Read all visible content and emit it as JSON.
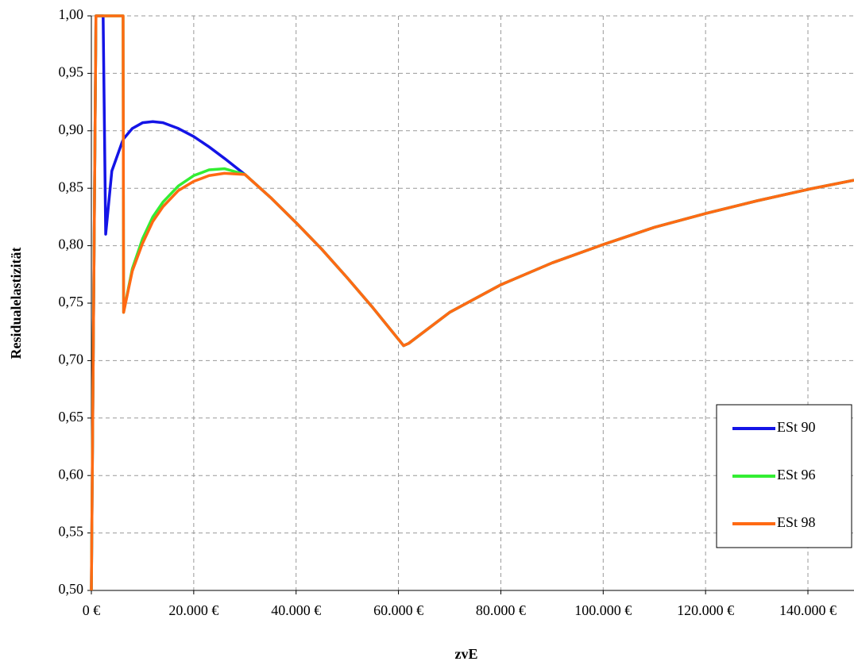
{
  "chart_data": {
    "type": "line",
    "xlabel": "zvE",
    "ylabel": "Residualelastizität",
    "x": [
      0,
      900,
      2300,
      2800,
      4000,
      6000,
      6200,
      6300,
      8000,
      10000,
      12000,
      14000,
      17000,
      20000,
      23000,
      26000,
      30000,
      35000,
      40000,
      45000,
      50000,
      55000,
      61000,
      62000,
      70000,
      80000,
      90000,
      100000,
      110000,
      120000,
      130000,
      140000,
      149000
    ],
    "series": [
      {
        "name": "ESt 90",
        "color": "#1414e6",
        "values": [
          0.5,
          1.0,
          1.0,
          0.81,
          0.865,
          0.89,
          0.892,
          0.893,
          0.902,
          0.907,
          0.908,
          0.907,
          0.902,
          0.895,
          0.886,
          0.876,
          0.862,
          0.842,
          0.82,
          0.797,
          0.772,
          0.746,
          0.713,
          0.715,
          0.742,
          0.766,
          0.785,
          0.801,
          0.816,
          0.828,
          0.839,
          0.849,
          0.857
        ]
      },
      {
        "name": "ESt 96",
        "color": "#33ee33",
        "values": [
          0.5,
          1.0,
          1.0,
          1.0,
          1.0,
          1.0,
          1.0,
          0.742,
          0.78,
          0.806,
          0.825,
          0.838,
          0.852,
          0.861,
          0.866,
          0.867,
          0.862,
          0.842,
          0.82,
          0.797,
          0.772,
          0.746,
          0.713,
          0.715,
          0.742,
          0.766,
          0.785,
          0.801,
          0.816,
          0.828,
          0.839,
          0.849,
          0.857
        ]
      },
      {
        "name": "ESt 98",
        "color": "#ff6a13",
        "values": [
          0.5,
          1.0,
          1.0,
          1.0,
          1.0,
          1.0,
          1.0,
          0.742,
          0.778,
          0.802,
          0.821,
          0.834,
          0.848,
          0.856,
          0.861,
          0.863,
          0.862,
          0.842,
          0.82,
          0.797,
          0.772,
          0.746,
          0.713,
          0.715,
          0.742,
          0.766,
          0.785,
          0.801,
          0.816,
          0.828,
          0.839,
          0.849,
          0.857
        ]
      }
    ],
    "xlim": [
      0,
      149000
    ],
    "xticks": [
      {
        "value": 0,
        "label": "0 €"
      },
      {
        "value": 20000,
        "label": "20.000 €"
      },
      {
        "value": 40000,
        "label": "40.000 €"
      },
      {
        "value": 60000,
        "label": "60.000 €"
      },
      {
        "value": 80000,
        "label": "80.000 €"
      },
      {
        "value": 100000,
        "label": "100.000 €"
      },
      {
        "value": 120000,
        "label": "120.000 €"
      },
      {
        "value": 140000,
        "label": "140.000 €"
      }
    ],
    "ylim": [
      0.5,
      1.0
    ],
    "yticks": [
      {
        "value": 0.5,
        "label": "0,50"
      },
      {
        "value": 0.55,
        "label": "0,55"
      },
      {
        "value": 0.6,
        "label": "0,60"
      },
      {
        "value": 0.65,
        "label": "0,65"
      },
      {
        "value": 0.7,
        "label": "0,70"
      },
      {
        "value": 0.75,
        "label": "0,75"
      },
      {
        "value": 0.8,
        "label": "0,80"
      },
      {
        "value": 0.85,
        "label": "0,85"
      },
      {
        "value": 0.9,
        "label": "0,90"
      },
      {
        "value": 0.95,
        "label": "0,95"
      },
      {
        "value": 1.0,
        "label": "1,00"
      }
    ],
    "grid": true,
    "legend": "lower right"
  }
}
